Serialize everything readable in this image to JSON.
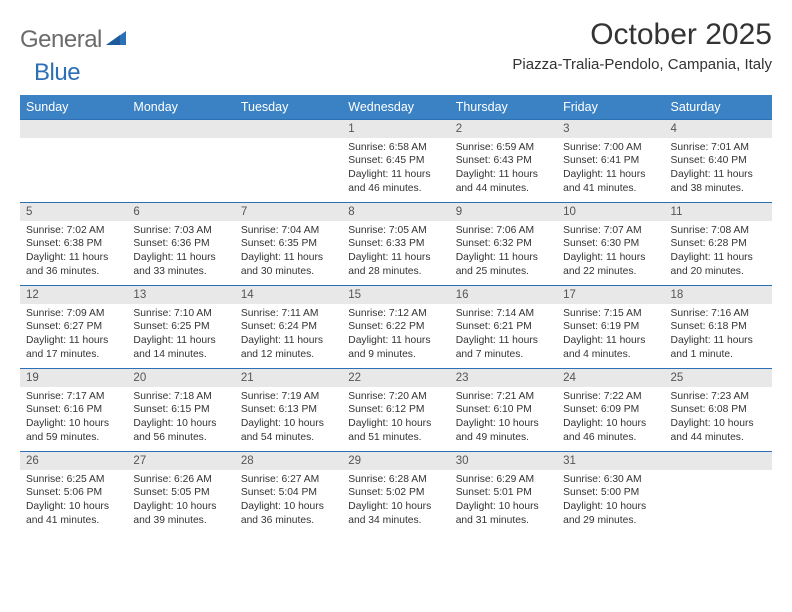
{
  "logo": {
    "text1": "General",
    "text2": "Blue"
  },
  "title": "October 2025",
  "location": "Piazza-Tralia-Pendolo, Campania, Italy",
  "colors": {
    "header_bg": "#3b82c4",
    "header_text": "#ffffff",
    "border_accent": "#2c6fb5",
    "daynum_bg": "#e8e8e8",
    "body_text": "#333333",
    "logo_gray": "#6b6b6b",
    "logo_blue": "#2c6fb5"
  },
  "day_headers": [
    "Sunday",
    "Monday",
    "Tuesday",
    "Wednesday",
    "Thursday",
    "Friday",
    "Saturday"
  ],
  "weeks": [
    [
      null,
      null,
      null,
      {
        "n": "1",
        "sr": "6:58 AM",
        "ss": "6:45 PM",
        "dl": "11 hours and 46 minutes."
      },
      {
        "n": "2",
        "sr": "6:59 AM",
        "ss": "6:43 PM",
        "dl": "11 hours and 44 minutes."
      },
      {
        "n": "3",
        "sr": "7:00 AM",
        "ss": "6:41 PM",
        "dl": "11 hours and 41 minutes."
      },
      {
        "n": "4",
        "sr": "7:01 AM",
        "ss": "6:40 PM",
        "dl": "11 hours and 38 minutes."
      }
    ],
    [
      {
        "n": "5",
        "sr": "7:02 AM",
        "ss": "6:38 PM",
        "dl": "11 hours and 36 minutes."
      },
      {
        "n": "6",
        "sr": "7:03 AM",
        "ss": "6:36 PM",
        "dl": "11 hours and 33 minutes."
      },
      {
        "n": "7",
        "sr": "7:04 AM",
        "ss": "6:35 PM",
        "dl": "11 hours and 30 minutes."
      },
      {
        "n": "8",
        "sr": "7:05 AM",
        "ss": "6:33 PM",
        "dl": "11 hours and 28 minutes."
      },
      {
        "n": "9",
        "sr": "7:06 AM",
        "ss": "6:32 PM",
        "dl": "11 hours and 25 minutes."
      },
      {
        "n": "10",
        "sr": "7:07 AM",
        "ss": "6:30 PM",
        "dl": "11 hours and 22 minutes."
      },
      {
        "n": "11",
        "sr": "7:08 AM",
        "ss": "6:28 PM",
        "dl": "11 hours and 20 minutes."
      }
    ],
    [
      {
        "n": "12",
        "sr": "7:09 AM",
        "ss": "6:27 PM",
        "dl": "11 hours and 17 minutes."
      },
      {
        "n": "13",
        "sr": "7:10 AM",
        "ss": "6:25 PM",
        "dl": "11 hours and 14 minutes."
      },
      {
        "n": "14",
        "sr": "7:11 AM",
        "ss": "6:24 PM",
        "dl": "11 hours and 12 minutes."
      },
      {
        "n": "15",
        "sr": "7:12 AM",
        "ss": "6:22 PM",
        "dl": "11 hours and 9 minutes."
      },
      {
        "n": "16",
        "sr": "7:14 AM",
        "ss": "6:21 PM",
        "dl": "11 hours and 7 minutes."
      },
      {
        "n": "17",
        "sr": "7:15 AM",
        "ss": "6:19 PM",
        "dl": "11 hours and 4 minutes."
      },
      {
        "n": "18",
        "sr": "7:16 AM",
        "ss": "6:18 PM",
        "dl": "11 hours and 1 minute."
      }
    ],
    [
      {
        "n": "19",
        "sr": "7:17 AM",
        "ss": "6:16 PM",
        "dl": "10 hours and 59 minutes."
      },
      {
        "n": "20",
        "sr": "7:18 AM",
        "ss": "6:15 PM",
        "dl": "10 hours and 56 minutes."
      },
      {
        "n": "21",
        "sr": "7:19 AM",
        "ss": "6:13 PM",
        "dl": "10 hours and 54 minutes."
      },
      {
        "n": "22",
        "sr": "7:20 AM",
        "ss": "6:12 PM",
        "dl": "10 hours and 51 minutes."
      },
      {
        "n": "23",
        "sr": "7:21 AM",
        "ss": "6:10 PM",
        "dl": "10 hours and 49 minutes."
      },
      {
        "n": "24",
        "sr": "7:22 AM",
        "ss": "6:09 PM",
        "dl": "10 hours and 46 minutes."
      },
      {
        "n": "25",
        "sr": "7:23 AM",
        "ss": "6:08 PM",
        "dl": "10 hours and 44 minutes."
      }
    ],
    [
      {
        "n": "26",
        "sr": "6:25 AM",
        "ss": "5:06 PM",
        "dl": "10 hours and 41 minutes."
      },
      {
        "n": "27",
        "sr": "6:26 AM",
        "ss": "5:05 PM",
        "dl": "10 hours and 39 minutes."
      },
      {
        "n": "28",
        "sr": "6:27 AM",
        "ss": "5:04 PM",
        "dl": "10 hours and 36 minutes."
      },
      {
        "n": "29",
        "sr": "6:28 AM",
        "ss": "5:02 PM",
        "dl": "10 hours and 34 minutes."
      },
      {
        "n": "30",
        "sr": "6:29 AM",
        "ss": "5:01 PM",
        "dl": "10 hours and 31 minutes."
      },
      {
        "n": "31",
        "sr": "6:30 AM",
        "ss": "5:00 PM",
        "dl": "10 hours and 29 minutes."
      },
      null
    ]
  ],
  "labels": {
    "sunrise": "Sunrise:",
    "sunset": "Sunset:",
    "daylight": "Daylight:"
  }
}
